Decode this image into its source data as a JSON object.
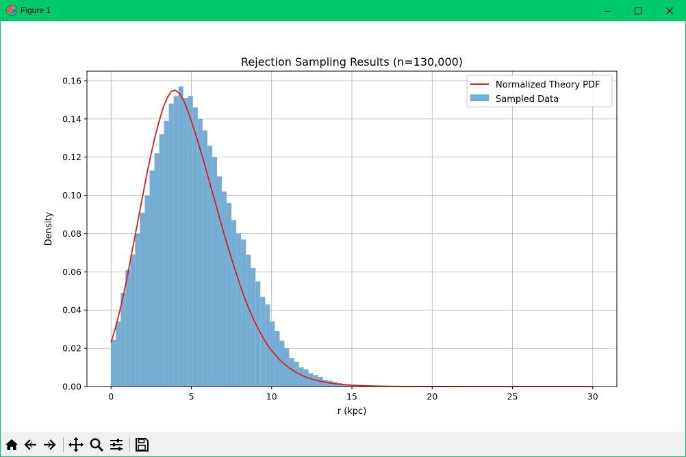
{
  "window": {
    "title": "Figure 1",
    "icons": [
      "matplotlib-app-icon",
      "minimize-icon",
      "maximize-icon",
      "close-icon"
    ],
    "titlebar_color": "#00c96a"
  },
  "toolbar": {
    "buttons": [
      {
        "name": "home-icon"
      },
      {
        "name": "back-arrow-icon"
      },
      {
        "name": "forward-arrow-icon"
      },
      {
        "name": "pan-icon"
      },
      {
        "name": "zoom-icon"
      },
      {
        "name": "subplots-config-icon"
      },
      {
        "name": "save-icon"
      }
    ]
  },
  "chart_data": {
    "type": "bar",
    "title": "Rejection Sampling Results (n=130,000)",
    "xlabel": "r (kpc)",
    "ylabel": "Density",
    "xlim": [
      -1.5,
      31.5
    ],
    "ylim": [
      0.0,
      0.165
    ],
    "xticks": [
      "0",
      "5",
      "10",
      "15",
      "20",
      "25",
      "30"
    ],
    "yticks": [
      "0.00",
      "0.02",
      "0.04",
      "0.06",
      "0.08",
      "0.10",
      "0.12",
      "0.14",
      "0.16"
    ],
    "grid": true,
    "legend_position": "top-right",
    "bin_width": 0.3,
    "histogram_color": "#76aed3",
    "pdf_color": "#e31a1c",
    "series": [
      {
        "name": "Normalized Theory PDF",
        "kind": "line",
        "x": [
          0,
          0.25,
          0.5,
          0.75,
          1,
          1.25,
          1.5,
          1.75,
          2,
          2.25,
          2.5,
          2.75,
          3,
          3.25,
          3.5,
          3.75,
          4,
          4.25,
          4.5,
          4.75,
          5,
          5.25,
          5.5,
          5.75,
          6,
          6.25,
          6.5,
          6.75,
          7,
          7.25,
          7.5,
          7.75,
          8,
          8.25,
          8.5,
          8.75,
          9,
          9.25,
          9.5,
          9.75,
          10,
          10.5,
          11,
          11.5,
          12,
          12.5,
          13,
          13.5,
          14,
          15,
          16,
          17,
          18,
          20,
          22,
          25,
          30
        ],
        "y": [
          0.023,
          0.03,
          0.038,
          0.047,
          0.057,
          0.068,
          0.079,
          0.09,
          0.101,
          0.112,
          0.122,
          0.131,
          0.139,
          0.146,
          0.151,
          0.1545,
          0.155,
          0.1535,
          0.15,
          0.145,
          0.139,
          0.1325,
          0.1255,
          0.1185,
          0.111,
          0.1035,
          0.096,
          0.0885,
          0.081,
          0.074,
          0.067,
          0.0605,
          0.054,
          0.048,
          0.0425,
          0.0375,
          0.033,
          0.0288,
          0.025,
          0.0217,
          0.0188,
          0.014,
          0.0103,
          0.0075,
          0.0054,
          0.0039,
          0.0028,
          0.002,
          0.0014,
          0.0007,
          0.00035,
          0.00017,
          8e-05,
          2e-05,
          5e-06,
          0.0,
          0.0
        ]
      },
      {
        "name": "Sampled Data",
        "kind": "histogram",
        "bin_start": [
          0.0,
          0.3,
          0.6,
          0.9,
          1.2,
          1.5,
          1.8,
          2.1,
          2.4,
          2.7,
          3.0,
          3.3,
          3.6,
          3.9,
          4.2,
          4.5,
          4.8,
          5.1,
          5.4,
          5.7,
          6.0,
          6.3,
          6.6,
          6.9,
          7.2,
          7.5,
          7.8,
          8.1,
          8.4,
          8.7,
          9.0,
          9.3,
          9.6,
          9.9,
          10.2,
          10.5,
          10.8,
          11.1,
          11.4,
          11.7,
          12.0,
          12.3,
          12.6,
          12.9,
          13.2,
          13.5,
          13.8,
          14.1,
          14.4,
          14.7,
          15.0,
          15.3,
          15.6,
          15.9,
          16.2,
          16.5,
          16.8,
          17.1,
          17.4,
          17.7,
          18.0
        ],
        "values": [
          0.0245,
          0.034,
          0.049,
          0.061,
          0.069,
          0.08,
          0.091,
          0.1,
          0.113,
          0.122,
          0.132,
          0.139,
          0.148,
          0.152,
          0.157,
          0.151,
          0.152,
          0.146,
          0.14,
          0.134,
          0.126,
          0.12,
          0.11,
          0.102,
          0.096,
          0.087,
          0.08,
          0.077,
          0.069,
          0.062,
          0.055,
          0.047,
          0.043,
          0.034,
          0.029,
          0.024,
          0.02,
          0.015,
          0.013,
          0.01,
          0.009,
          0.007,
          0.006,
          0.005,
          0.0035,
          0.003,
          0.0024,
          0.0018,
          0.0013,
          0.001,
          0.0008,
          0.0006,
          0.0004,
          0.0003,
          0.0002,
          0.00015,
          0.0001,
          0.0001,
          5e-05,
          5e-05,
          3e-05
        ]
      }
    ]
  }
}
